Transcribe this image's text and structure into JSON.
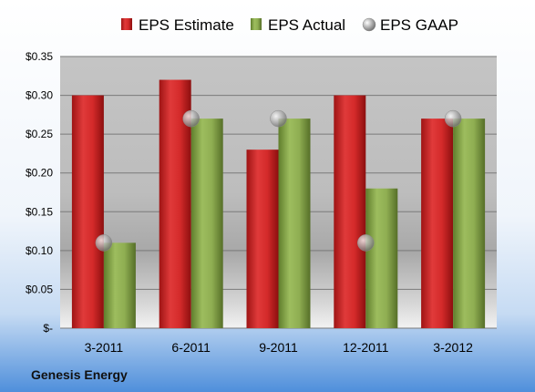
{
  "company_label": "Genesis Energy",
  "chart_data": {
    "type": "bar",
    "categories": [
      "3-2011",
      "6-2011",
      "9-2011",
      "12-2011",
      "3-2012"
    ],
    "series": [
      {
        "name": "EPS Estimate",
        "kind": "bar",
        "color": "#d42a2a",
        "values": [
          0.3,
          0.32,
          0.23,
          0.3,
          0.27
        ]
      },
      {
        "name": "EPS Actual",
        "kind": "bar",
        "color": "#8fae52",
        "values": [
          0.11,
          0.27,
          0.27,
          0.18,
          0.27
        ]
      },
      {
        "name": "EPS GAAP",
        "kind": "marker",
        "color": "#b5b5b5",
        "values": [
          0.11,
          0.27,
          0.27,
          0.11,
          0.27
        ]
      }
    ],
    "yticks": [
      {
        "value": 0.35,
        "label": "$0.35"
      },
      {
        "value": 0.3,
        "label": "$0.30"
      },
      {
        "value": 0.25,
        "label": "$0.25"
      },
      {
        "value": 0.2,
        "label": "$0.20"
      },
      {
        "value": 0.15,
        "label": "$0.15"
      },
      {
        "value": 0.1,
        "label": "$0.10"
      },
      {
        "value": 0.05,
        "label": "$0.05"
      },
      {
        "value": 0.0,
        "label": "$-"
      }
    ],
    "ylim": [
      0,
      0.35
    ],
    "grid": true,
    "legend_position": "top"
  }
}
